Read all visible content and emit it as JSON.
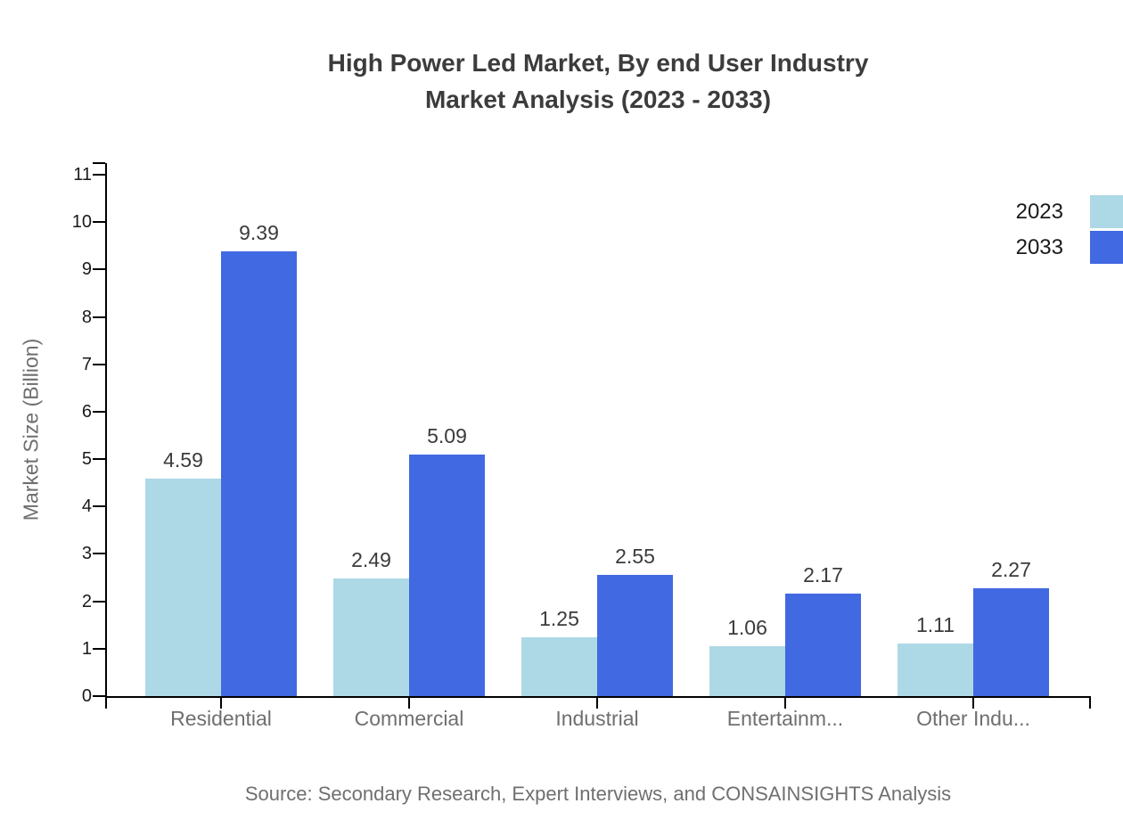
{
  "title": {
    "line1": "High Power Led Market, By end User Industry",
    "line2": "Market Analysis (2023 - 2033)"
  },
  "source": "Source: Secondary Research, Expert Interviews, and CONSAINSIGHTS Analysis",
  "colors": {
    "series_2023": "#ADD8E6",
    "series_2033": "#4169E1",
    "axis": "#000000",
    "title_text": "#3c3c3c",
    "value_label_text": "#3b3b3b",
    "category_text": "#6f6f6f",
    "muted_text": "#6e6e6e"
  },
  "chart_data": {
    "type": "bar",
    "title": "High Power Led Market, By end User Industry Market Analysis (2023 - 2033)",
    "categories": [
      "Residential",
      "Commercial",
      "Industrial",
      "Entertainm...",
      "Other Indu..."
    ],
    "series": [
      {
        "name": "2023",
        "color": "#ADD8E6",
        "values": [
          4.59,
          2.49,
          1.25,
          1.06,
          1.11
        ]
      },
      {
        "name": "2033",
        "color": "#4169E1",
        "values": [
          9.39,
          5.09,
          2.55,
          2.17,
          2.27
        ]
      }
    ],
    "xlabel": "",
    "ylabel": "Market Size (Billion)",
    "ylim": [
      0,
      11.25
    ],
    "yticks": [
      0,
      1,
      2,
      3,
      4,
      5,
      6,
      7,
      8,
      9,
      10,
      11
    ],
    "grid": false,
    "legend_position": "top-right",
    "value_labels_shown": true
  }
}
